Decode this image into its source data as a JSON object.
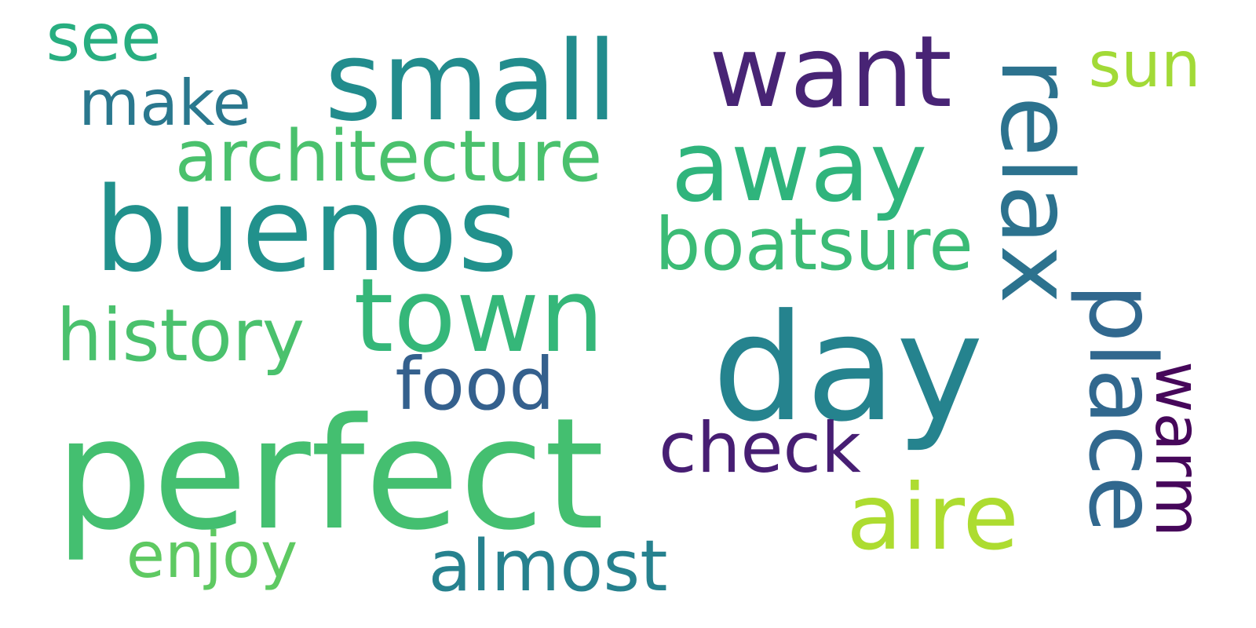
{
  "word_cloud": {
    "words": {
      "perfect": {
        "text": "perfect",
        "color": "#44bf70"
      },
      "day": {
        "text": "day",
        "color": "#25838e"
      },
      "buenos": {
        "text": "buenos",
        "color": "#21918c"
      },
      "small": {
        "text": "small",
        "color": "#228c8d"
      },
      "want": {
        "text": "want",
        "color": "#482475"
      },
      "town": {
        "text": "town",
        "color": "#35b779"
      },
      "away": {
        "text": "away",
        "color": "#2fb47c"
      },
      "aire": {
        "text": "aire",
        "color": "#addc30"
      },
      "relax": {
        "text": "relax",
        "color": "#2c728e"
      },
      "place": {
        "text": "place",
        "color": "#31688e"
      },
      "warm": {
        "text": "warm",
        "color": "#46075a"
      },
      "architecture": {
        "text": "architecture",
        "color": "#4ac16d"
      },
      "history": {
        "text": "history",
        "color": "#4ac16d"
      },
      "boatsure": {
        "text": "boatsure",
        "color": "#3bbb75"
      },
      "food": {
        "text": "food",
        "color": "#34608d"
      },
      "check": {
        "text": "check",
        "color": "#471e73"
      },
      "almost": {
        "text": "almost",
        "color": "#26818e"
      },
      "enjoy": {
        "text": "enjoy",
        "color": "#5ec962"
      },
      "see": {
        "text": "see",
        "color": "#28ae80"
      },
      "make": {
        "text": "make",
        "color": "#2a788e"
      },
      "sun": {
        "text": "sun",
        "color": "#a2da37"
      }
    }
  }
}
